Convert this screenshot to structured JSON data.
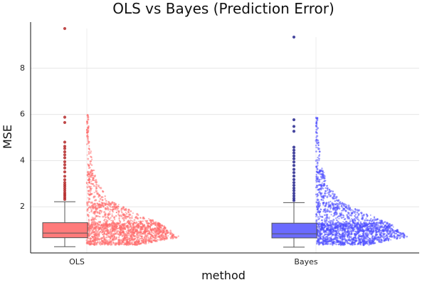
{
  "chart_data": {
    "type": "boxplot-with-raincloud",
    "title": "OLS vs Bayes (Prediction Error)",
    "xlabel": "method",
    "ylabel": "MSE",
    "categories": [
      "OLS",
      "Bayes"
    ],
    "ylim": [
      0,
      10
    ],
    "y_ticks": [
      2,
      4,
      6,
      8
    ],
    "grid": true,
    "series": [
      {
        "category": "OLS",
        "color": "#ff6b6b",
        "box_color": "#ff7b7b",
        "outlier_color": "#b22222",
        "box": {
          "whisker_low": 0.27,
          "q1": 0.66,
          "median": 0.86,
          "q3": 1.31,
          "whisker_high": 2.22
        },
        "outliers": [
          9.72,
          5.88,
          5.65,
          4.8,
          4.62,
          4.52,
          4.38,
          4.25,
          4.12,
          3.95,
          3.82,
          3.68,
          3.51,
          3.32,
          3.17,
          3.05,
          2.96,
          2.88,
          2.79,
          2.7,
          2.61,
          2.54,
          2.47,
          2.39,
          2.32
        ],
        "distribution": {
          "min": 0.35,
          "max": 9.72,
          "peak": 0.7
        }
      },
      {
        "category": "Bayes",
        "color": "#4d4dff",
        "box_color": "#6b6bff",
        "outlier_color": "#1f1f8a",
        "box": {
          "whisker_low": 0.25,
          "q1": 0.65,
          "median": 0.83,
          "q3": 1.29,
          "whisker_high": 2.18
        },
        "outliers": [
          9.35,
          5.77,
          5.48,
          5.27,
          4.58,
          4.45,
          4.33,
          4.2,
          4.08,
          3.94,
          3.79,
          3.62,
          3.48,
          3.33,
          3.18,
          3.05,
          2.93,
          2.81,
          2.7,
          2.58,
          2.47,
          2.36,
          2.27
        ],
        "distribution": {
          "min": 0.33,
          "max": 9.35,
          "peak": 0.68
        }
      }
    ]
  }
}
